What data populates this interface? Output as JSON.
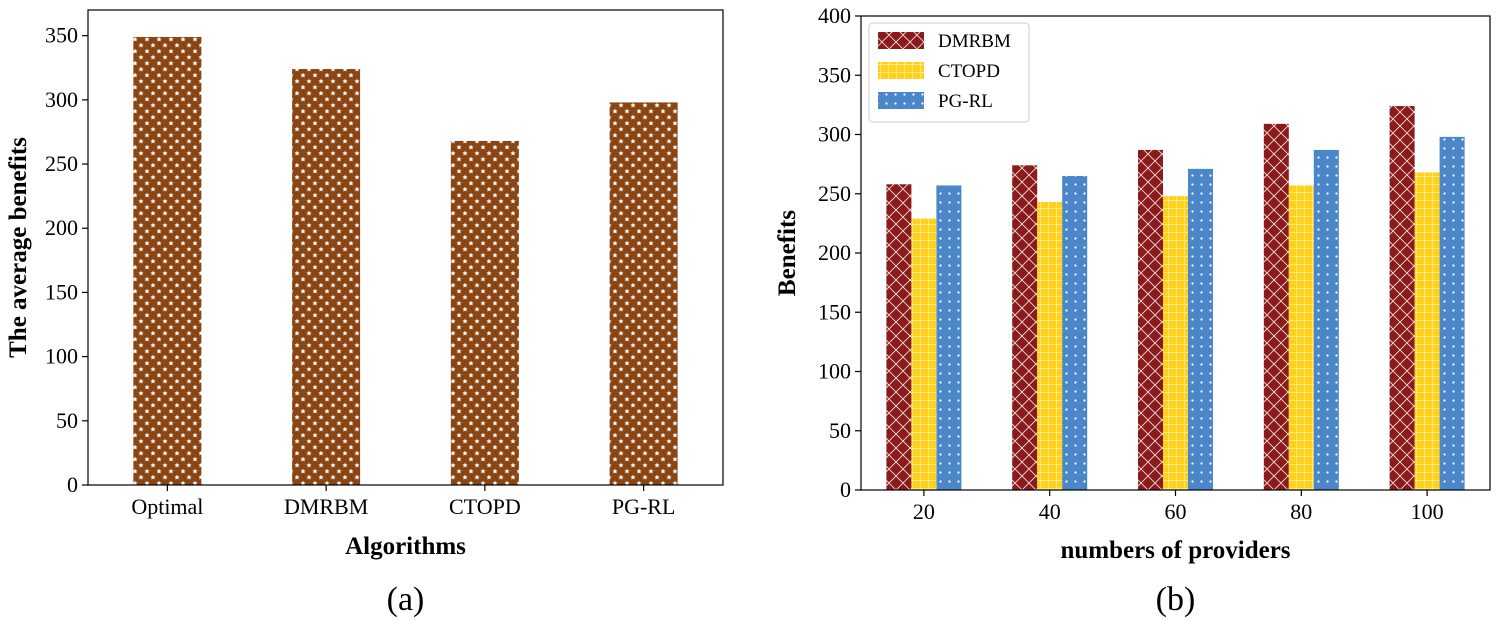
{
  "chart_data": [
    {
      "type": "bar",
      "caption": "(a)",
      "categories": [
        "Optimal",
        "DMRBM",
        "CTOPD",
        "PG-RL"
      ],
      "values": [
        349,
        324,
        268,
        298
      ],
      "xlabel": "Algorithms",
      "ylabel": "The average benefits",
      "ylim": [
        0,
        370
      ],
      "yticks": [
        0,
        50,
        100,
        150,
        200,
        250,
        300,
        350
      ],
      "grid": false,
      "colors": {
        "bar": "#8B4513",
        "hatch": "#ffffff"
      },
      "hatch": "stars"
    },
    {
      "type": "bar",
      "caption": "(b)",
      "categories": [
        "20",
        "40",
        "60",
        "80",
        "100"
      ],
      "series": [
        {
          "name": "DMRBM",
          "values": [
            258,
            274,
            287,
            309,
            324
          ],
          "color": "#8B1A1A",
          "hatch": "crosshatch"
        },
        {
          "name": "CTOPD",
          "values": [
            229,
            243,
            248,
            257,
            268
          ],
          "color": "#FFD11A",
          "hatch": "grid"
        },
        {
          "name": "PG-RL",
          "values": [
            257,
            265,
            271,
            287,
            298
          ],
          "color": "#4A86C8",
          "hatch": "dots"
        }
      ],
      "xlabel": "numbers of providers",
      "ylabel": "Benefits",
      "ylim": [
        0,
        400
      ],
      "yticks": [
        0,
        50,
        100,
        150,
        200,
        250,
        300,
        350,
        400
      ],
      "grid": false,
      "legend": "top-left"
    }
  ]
}
